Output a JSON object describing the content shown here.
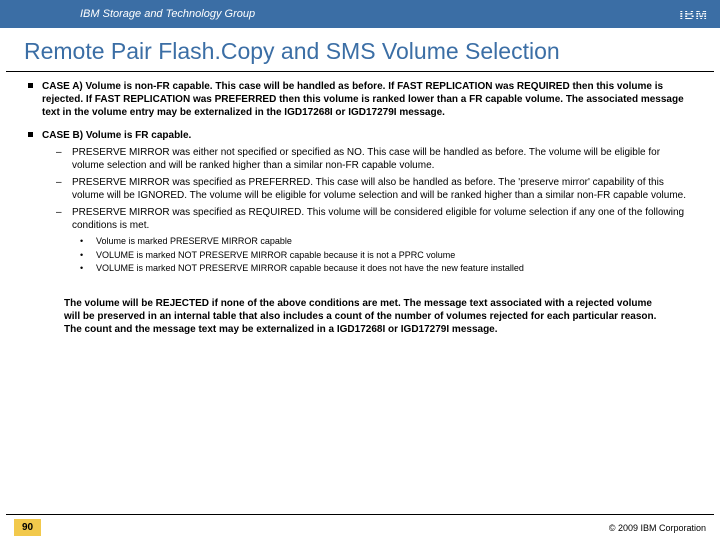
{
  "header": {
    "group_name": "IBM Storage and Technology Group",
    "logo_text": "IBM"
  },
  "title": "Remote Pair Flash.Copy and SMS Volume Selection",
  "case_a": {
    "lead": "CASE A) Volume is non-FR capable.",
    "body": " This case will be handled as before. If FAST REPLICATION was REQUIRED then this volume is rejected. If FAST REPLICATION was PREFERRED then this volume is ranked lower than a FR capable volume. The associated message text in the volume entry may be externalized in the IGD17268I or IGD17279I message."
  },
  "case_b": {
    "lead": "CASE B) Volume is FR capable.",
    "sub1": "PRESERVE MIRROR was either not specified or specified as NO. This case will be handled as before. The volume will be eligible for volume selection and will be ranked higher than a similar non-FR capable volume.",
    "sub2": "PRESERVE MIRROR was specified as PREFERRED. This case will also be handled as before. The 'preserve mirror' capability of this volume will be IGNORED. The volume will be eligible for volume selection and will be ranked higher than a similar non-FR capable volume.",
    "sub3": "PRESERVE MIRROR was specified as REQUIRED. This volume will be considered eligible for volume selection if any one of the following conditions is met.",
    "dot1": "Volume is marked PRESERVE MIRROR capable",
    "dot2": "VOLUME is marked NOT PRESERVE MIRROR capable because it is not a PPRC volume",
    "dot3": "VOLUME is marked NOT PRESERVE MIRROR capable because it does not have the new feature installed"
  },
  "summary": "The volume will be REJECTED if none of the above conditions are met. The message text associated with a rejected volume will be preserved in an internal table that also includes a count of the number of volumes rejected for each particular reason. The count and the message text may be externalized in a IGD17268I or IGD17279I message.",
  "footer": {
    "page_number": "90",
    "copyright": "© 2009 IBM Corporation"
  },
  "colors": {
    "header_bg": "#3b6ea5",
    "title_color": "#3b6ea5",
    "page_badge_bg": "#f2c94c",
    "text": "#000000",
    "background": "#ffffff"
  }
}
